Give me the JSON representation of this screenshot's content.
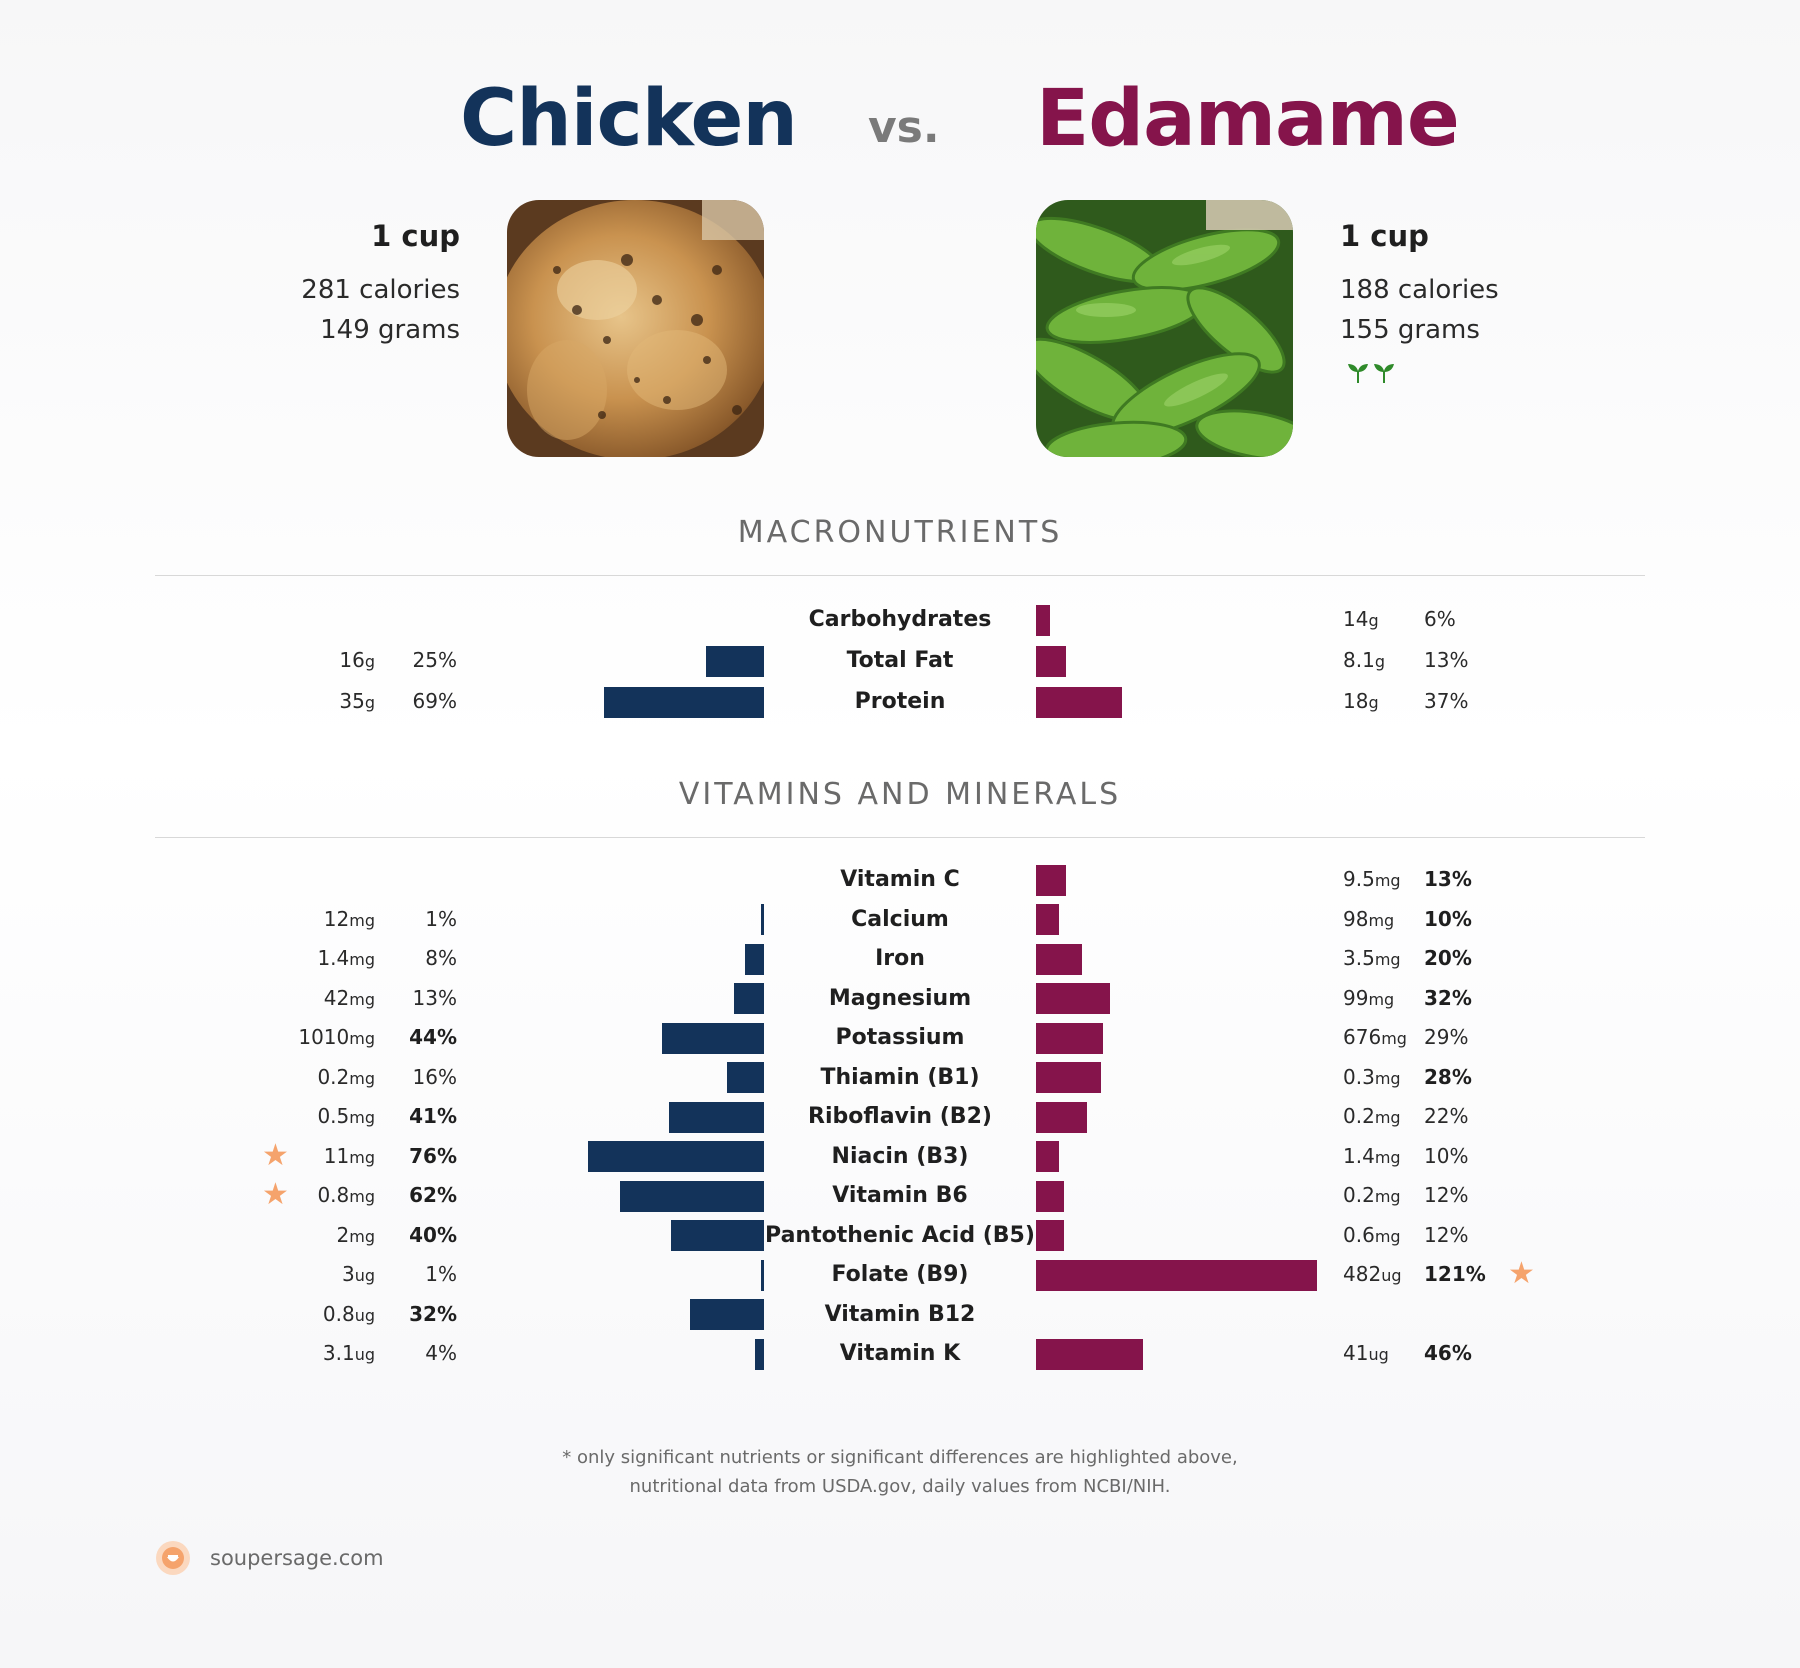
{
  "header": {
    "left_title": "Chicken",
    "vs": "vs.",
    "right_title": "Edamame",
    "left_color": "#13335a",
    "right_color": "#85144b"
  },
  "left_food": {
    "serving": "1 cup",
    "calories": "281 calories",
    "grams": "149 grams",
    "image": "roast-chicken-photo"
  },
  "right_food": {
    "serving": "1 cup",
    "calories": "188 calories",
    "grams": "155 grams",
    "image": "edamame-pods-photo",
    "badge": "vegan-sprout-icons"
  },
  "sections": {
    "macros_title": "MACRONUTRIENTS",
    "vitamins_title": "VITAMINS AND MINERALS"
  },
  "chart_data": [
    {
      "type": "bar",
      "orientation": "horizontal-diverging",
      "title": "MACRONUTRIENTS",
      "categories": [
        "Carbohydrates",
        "Total Fat",
        "Protein"
      ],
      "series": [
        {
          "name": "Chicken",
          "amounts": [
            "",
            "16",
            "35"
          ],
          "units": [
            "",
            "g",
            "g"
          ],
          "pct_labels": [
            "",
            "25%",
            "69%"
          ],
          "pct_values": [
            0,
            25,
            69
          ],
          "bold": [
            false,
            false,
            false
          ],
          "star": [
            false,
            false,
            false
          ]
        },
        {
          "name": "Edamame",
          "amounts": [
            "14",
            "8.1",
            "18"
          ],
          "units": [
            "g",
            "g",
            "g"
          ],
          "pct_labels": [
            "6%",
            "13%",
            "37%"
          ],
          "pct_values": [
            6,
            13,
            37
          ],
          "bold": [
            false,
            false,
            false
          ],
          "star": [
            false,
            false,
            false
          ]
        }
      ]
    },
    {
      "type": "bar",
      "orientation": "horizontal-diverging",
      "title": "VITAMINS AND MINERALS",
      "categories": [
        "Vitamin C",
        "Calcium",
        "Iron",
        "Magnesium",
        "Potassium",
        "Thiamin (B1)",
        "Riboflavin (B2)",
        "Niacin (B3)",
        "Vitamin B6",
        "Pantothenic Acid (B5)",
        "Folate (B9)",
        "Vitamin B12",
        "Vitamin K"
      ],
      "series": [
        {
          "name": "Chicken",
          "amounts": [
            "",
            "12",
            "1.4",
            "42",
            "1010",
            "0.2",
            "0.5",
            "11",
            "0.8",
            "2",
            "3",
            "0.8",
            "3.1"
          ],
          "units": [
            "",
            "mg",
            "mg",
            "mg",
            "mg",
            "mg",
            "mg",
            "mg",
            "mg",
            "mg",
            "ug",
            "ug",
            "ug"
          ],
          "pct_labels": [
            "",
            "1%",
            "8%",
            "13%",
            "44%",
            "16%",
            "41%",
            "76%",
            "62%",
            "40%",
            "1%",
            "32%",
            "4%"
          ],
          "pct_values": [
            0,
            1,
            8,
            13,
            44,
            16,
            41,
            76,
            62,
            40,
            1,
            32,
            4
          ],
          "bold": [
            false,
            false,
            false,
            false,
            true,
            false,
            true,
            true,
            true,
            true,
            false,
            true,
            false
          ],
          "star": [
            false,
            false,
            false,
            false,
            false,
            false,
            false,
            true,
            true,
            false,
            false,
            false,
            false
          ]
        },
        {
          "name": "Edamame",
          "amounts": [
            "9.5",
            "98",
            "3.5",
            "99",
            "676",
            "0.3",
            "0.2",
            "1.4",
            "0.2",
            "0.6",
            "482",
            "",
            "41"
          ],
          "units": [
            "mg",
            "mg",
            "mg",
            "mg",
            "mg",
            "mg",
            "mg",
            "mg",
            "mg",
            "mg",
            "ug",
            "",
            "ug"
          ],
          "pct_labels": [
            "13%",
            "10%",
            "20%",
            "32%",
            "29%",
            "28%",
            "22%",
            "10%",
            "12%",
            "12%",
            "121%",
            "",
            "46%"
          ],
          "pct_values": [
            13,
            10,
            20,
            32,
            29,
            28,
            22,
            10,
            12,
            12,
            121,
            0,
            46
          ],
          "bold": [
            true,
            true,
            true,
            true,
            false,
            true,
            false,
            false,
            false,
            false,
            true,
            false,
            true
          ],
          "star": [
            false,
            false,
            false,
            false,
            false,
            false,
            false,
            false,
            false,
            false,
            true,
            false,
            false
          ]
        }
      ]
    }
  ],
  "footnote": {
    "line1": "* only significant nutrients or significant differences are highlighted above,",
    "line2": "nutritional data from USDA.gov, daily values from NCBI/NIH."
  },
  "brand": {
    "text": "soupersage.com",
    "icon": "soupersage-logo-icon",
    "color": "#f5a36c"
  }
}
